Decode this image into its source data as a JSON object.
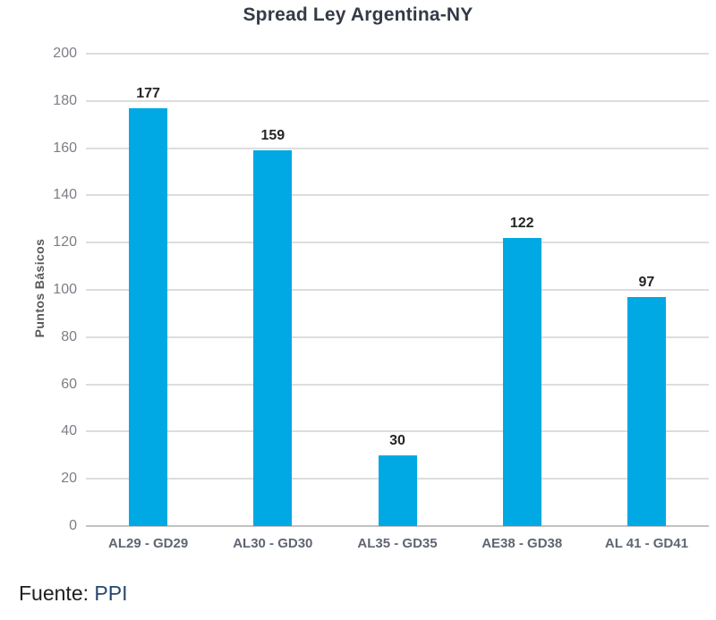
{
  "chart_data": {
    "type": "bar",
    "title": "Spread Ley Argentina-NY",
    "categories": [
      "AL29 - GD29",
      "AL30 - GD30",
      "AL35 - GD35",
      "AE38 - GD38",
      "AL 41 - GD41"
    ],
    "values": [
      177,
      159,
      30,
      122,
      97
    ],
    "xlabel": "",
    "ylabel": "Puntos Básicos",
    "ylim": [
      0,
      200
    ],
    "yticks": [
      0,
      20,
      40,
      60,
      80,
      100,
      120,
      140,
      160,
      180,
      200
    ],
    "grid": "horizontal",
    "legend": "none",
    "bar_color": "#00a9e4",
    "gridline_color": "#dddddd",
    "value_label_color": "#262626"
  },
  "footer": {
    "source_label": "Fuente:",
    "source_value": "PPI"
  }
}
